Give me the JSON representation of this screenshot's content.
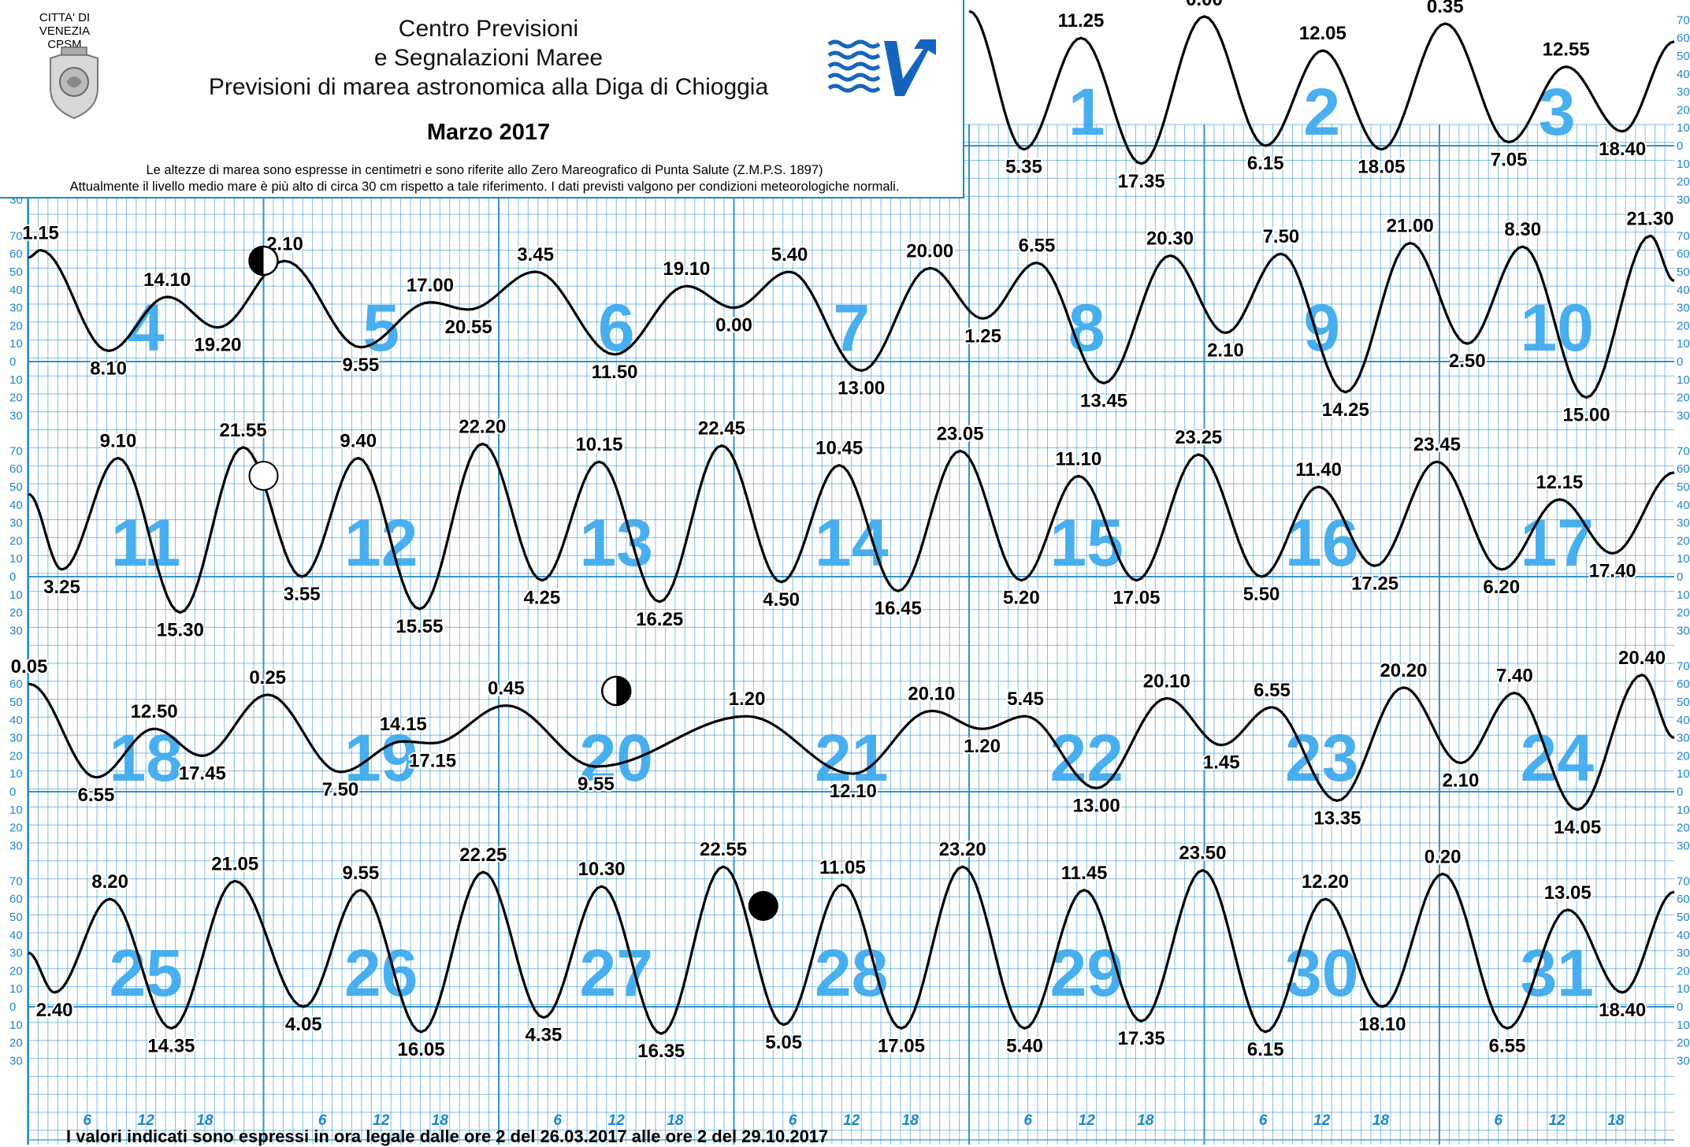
{
  "header": {
    "city": "CITTA' DI VENEZIA",
    "org_short": "CPSM",
    "title_line1": "Centro Previsioni",
    "title_line2": "e Segnalazioni Maree",
    "title_line3": "Previsioni di marea astronomica alla Diga di Chioggia",
    "month": "Marzo 2017",
    "note_line1": "Le altezze di marea sono espresse in centimetri e sono riferite allo Zero Mareografico di Punta Salute (Z.M.P.S. 1897)",
    "note_line2": "Attualmente il livello medio mare è più alto di circa 30 cm rispetto a tale riferimento. I dati previsti valgono per condizioni meteorologiche normali."
  },
  "footer": "I valori indicati sono espressi in ora legale dalle ore 2 del 26.03.2017 alle ore 2 del 29.10.2017",
  "colors": {
    "grid": "#1e88c8",
    "day_number": "#3aa8ee",
    "curve": "#000000"
  },
  "chart_data": {
    "type": "line",
    "unit": "cm",
    "y_ticks_positive": [
      "70",
      "60",
      "50",
      "40",
      "30",
      "20",
      "10",
      "0"
    ],
    "y_ticks_negative": [
      "10",
      "20",
      "30"
    ],
    "x_hour_ticks": [
      "6",
      "12",
      "18"
    ],
    "rows": [
      {
        "days": [
          1,
          2,
          3
        ],
        "start_level": 75,
        "end_level": 58,
        "extremes": [
          {
            "time": "5.35",
            "day": 1,
            "value": -2
          },
          {
            "time": "11.25",
            "day": 1,
            "value": 60
          },
          {
            "time": "17.35",
            "day": 1,
            "value": -10
          },
          {
            "time": "0.00",
            "day": 2,
            "value": 72
          },
          {
            "time": "6.15",
            "day": 2,
            "value": 0
          },
          {
            "time": "12.05",
            "day": 2,
            "value": 53
          },
          {
            "time": "18.05",
            "day": 2,
            "value": -2
          },
          {
            "time": "0.35",
            "day": 3,
            "value": 68
          },
          {
            "time": "7.05",
            "day": 3,
            "value": 2
          },
          {
            "time": "12.55",
            "day": 3,
            "value": 44
          },
          {
            "time": "18.40",
            "day": 3,
            "value": 8
          }
        ]
      },
      {
        "days": [
          4,
          5,
          6,
          7,
          8,
          9,
          10
        ],
        "start_level": 58,
        "end_level": 45,
        "extremes": [
          {
            "time": "1.15",
            "day": 4,
            "value": 62
          },
          {
            "time": "8.10",
            "day": 4,
            "value": 6
          },
          {
            "time": "14.10",
            "day": 4,
            "value": 36
          },
          {
            "time": "19.20",
            "day": 4,
            "value": 19
          },
          {
            "time": "2.10",
            "day": 5,
            "value": 56
          },
          {
            "time": "9.55",
            "day": 5,
            "value": 8
          },
          {
            "time": "17.00",
            "day": 5,
            "value": 33
          },
          {
            "time": "20.55",
            "day": 5,
            "value": 29
          },
          {
            "time": "3.45",
            "day": 6,
            "value": 50
          },
          {
            "time": "11.50",
            "day": 6,
            "value": 4
          },
          {
            "time": "19.10",
            "day": 6,
            "value": 42
          },
          {
            "time": "0.00",
            "day": 7,
            "value": 30
          },
          {
            "time": "5.40",
            "day": 7,
            "value": 50
          },
          {
            "time": "13.00",
            "day": 7,
            "value": -5
          },
          {
            "time": "20.00",
            "day": 7,
            "value": 52
          },
          {
            "time": "1.25",
            "day": 8,
            "value": 24
          },
          {
            "time": "6.55",
            "day": 8,
            "value": 55
          },
          {
            "time": "13.45",
            "day": 8,
            "value": -12
          },
          {
            "time": "20.30",
            "day": 8,
            "value": 59
          },
          {
            "time": "2.10",
            "day": 9,
            "value": 16
          },
          {
            "time": "7.50",
            "day": 9,
            "value": 60
          },
          {
            "time": "14.25",
            "day": 9,
            "value": -17
          },
          {
            "time": "21.00",
            "day": 9,
            "value": 66
          },
          {
            "time": "2.50",
            "day": 10,
            "value": 10
          },
          {
            "time": "8.30",
            "day": 10,
            "value": 64
          },
          {
            "time": "15.00",
            "day": 10,
            "value": -20
          },
          {
            "time": "21.30",
            "day": 10,
            "value": 70
          }
        ]
      },
      {
        "days": [
          11,
          12,
          13,
          14,
          15,
          16,
          17
        ],
        "start_level": 46,
        "end_level": 58,
        "extremes": [
          {
            "time": "3.25",
            "day": 11,
            "value": 4
          },
          {
            "time": "9.10",
            "day": 11,
            "value": 66
          },
          {
            "time": "15.30",
            "day": 11,
            "value": -20
          },
          {
            "time": "21.55",
            "day": 11,
            "value": 72
          },
          {
            "time": "3.55",
            "day": 12,
            "value": 0
          },
          {
            "time": "9.40",
            "day": 12,
            "value": 66
          },
          {
            "time": "15.55",
            "day": 12,
            "value": -18
          },
          {
            "time": "22.20",
            "day": 12,
            "value": 74
          },
          {
            "time": "4.25",
            "day": 13,
            "value": -2
          },
          {
            "time": "10.15",
            "day": 13,
            "value": 64
          },
          {
            "time": "16.25",
            "day": 13,
            "value": -14
          },
          {
            "time": "22.45",
            "day": 13,
            "value": 73
          },
          {
            "time": "4.50",
            "day": 14,
            "value": -3
          },
          {
            "time": "10.45",
            "day": 14,
            "value": 62
          },
          {
            "time": "16.45",
            "day": 14,
            "value": -8
          },
          {
            "time": "23.05",
            "day": 14,
            "value": 70
          },
          {
            "time": "5.20",
            "day": 15,
            "value": -2
          },
          {
            "time": "11.10",
            "day": 15,
            "value": 56
          },
          {
            "time": "17.05",
            "day": 15,
            "value": -2
          },
          {
            "time": "23.25",
            "day": 15,
            "value": 68
          },
          {
            "time": "5.50",
            "day": 16,
            "value": 0
          },
          {
            "time": "11.40",
            "day": 16,
            "value": 50
          },
          {
            "time": "17.25",
            "day": 16,
            "value": 6
          },
          {
            "time": "23.45",
            "day": 16,
            "value": 64
          },
          {
            "time": "6.20",
            "day": 17,
            "value": 4
          },
          {
            "time": "12.15",
            "day": 17,
            "value": 43
          },
          {
            "time": "17.40",
            "day": 17,
            "value": 13
          }
        ]
      },
      {
        "days": [
          18,
          19,
          20,
          21,
          22,
          23,
          24
        ],
        "start_level": 60,
        "end_level": 30,
        "extremes": [
          {
            "time": "0.05",
            "day": 18,
            "value": 60
          },
          {
            "time": "6.55",
            "day": 18,
            "value": 8
          },
          {
            "time": "12.50",
            "day": 18,
            "value": 35
          },
          {
            "time": "17.45",
            "day": 18,
            "value": 20
          },
          {
            "time": "0.25",
            "day": 19,
            "value": 54
          },
          {
            "time": "7.50",
            "day": 19,
            "value": 11
          },
          {
            "time": "14.15",
            "day": 19,
            "value": 28
          },
          {
            "time": "17.15",
            "day": 19,
            "value": 27
          },
          {
            "time": "0.45",
            "day": 20,
            "value": 48
          },
          {
            "time": "9.55",
            "day": 20,
            "value": 14
          },
          {
            "time": "1.20",
            "day": 21,
            "value": 42
          },
          {
            "time": "12.10",
            "day": 21,
            "value": 10
          },
          {
            "time": "20.10",
            "day": 21,
            "value": 45
          },
          {
            "time": "1.20",
            "day": 22,
            "value": 35
          },
          {
            "time": "5.45",
            "day": 22,
            "value": 42
          },
          {
            "time": "13.00",
            "day": 22,
            "value": 2
          },
          {
            "time": "20.10",
            "day": 22,
            "value": 52
          },
          {
            "time": "1.45",
            "day": 23,
            "value": 26
          },
          {
            "time": "6.55",
            "day": 23,
            "value": 47
          },
          {
            "time": "13.35",
            "day": 23,
            "value": -5
          },
          {
            "time": "20.20",
            "day": 23,
            "value": 58
          },
          {
            "time": "2.10",
            "day": 24,
            "value": 16
          },
          {
            "time": "7.40",
            "day": 24,
            "value": 55
          },
          {
            "time": "14.05",
            "day": 24,
            "value": -10
          },
          {
            "time": "20.40",
            "day": 24,
            "value": 65
          }
        ]
      },
      {
        "days": [
          25,
          26,
          27,
          28,
          29,
          30,
          31
        ],
        "start_level": 30,
        "end_level": 64,
        "extremes": [
          {
            "time": "2.40",
            "day": 25,
            "value": 8
          },
          {
            "time": "8.20",
            "day": 25,
            "value": 60
          },
          {
            "time": "14.35",
            "day": 25,
            "value": -12
          },
          {
            "time": "21.05",
            "day": 25,
            "value": 70
          },
          {
            "time": "4.05",
            "day": 26,
            "value": 0
          },
          {
            "time": "9.55",
            "day": 26,
            "value": 65
          },
          {
            "time": "16.05",
            "day": 26,
            "value": -14
          },
          {
            "time": "22.25",
            "day": 26,
            "value": 75
          },
          {
            "time": "4.35",
            "day": 27,
            "value": -6
          },
          {
            "time": "10.30",
            "day": 27,
            "value": 67
          },
          {
            "time": "16.35",
            "day": 27,
            "value": -15
          },
          {
            "time": "22.55",
            "day": 27,
            "value": 78
          },
          {
            "time": "5.05",
            "day": 28,
            "value": -10
          },
          {
            "time": "11.05",
            "day": 28,
            "value": 68
          },
          {
            "time": "17.05",
            "day": 28,
            "value": -12
          },
          {
            "time": "23.20",
            "day": 28,
            "value": 78
          },
          {
            "time": "5.40",
            "day": 29,
            "value": -12
          },
          {
            "time": "11.45",
            "day": 29,
            "value": 65
          },
          {
            "time": "17.35",
            "day": 29,
            "value": -8
          },
          {
            "time": "23.50",
            "day": 29,
            "value": 76
          },
          {
            "time": "6.15",
            "day": 30,
            "value": -14
          },
          {
            "time": "12.20",
            "day": 30,
            "value": 60
          },
          {
            "time": "18.10",
            "day": 30,
            "value": 0
          },
          {
            "time": "0.20",
            "day": 31,
            "value": 74
          },
          {
            "time": "6.55",
            "day": 31,
            "value": -12
          },
          {
            "time": "13.05",
            "day": 31,
            "value": 54
          },
          {
            "time": "18.40",
            "day": 31,
            "value": 8
          }
        ]
      }
    ],
    "moon_phases": [
      {
        "phase": "first-quarter",
        "day": 5,
        "time": "0.00"
      },
      {
        "phase": "full",
        "day": 12,
        "time": "0.00"
      },
      {
        "phase": "last-quarter",
        "day": 20,
        "time": "12.00"
      },
      {
        "phase": "new",
        "day": 28,
        "time": "3.00"
      }
    ]
  }
}
